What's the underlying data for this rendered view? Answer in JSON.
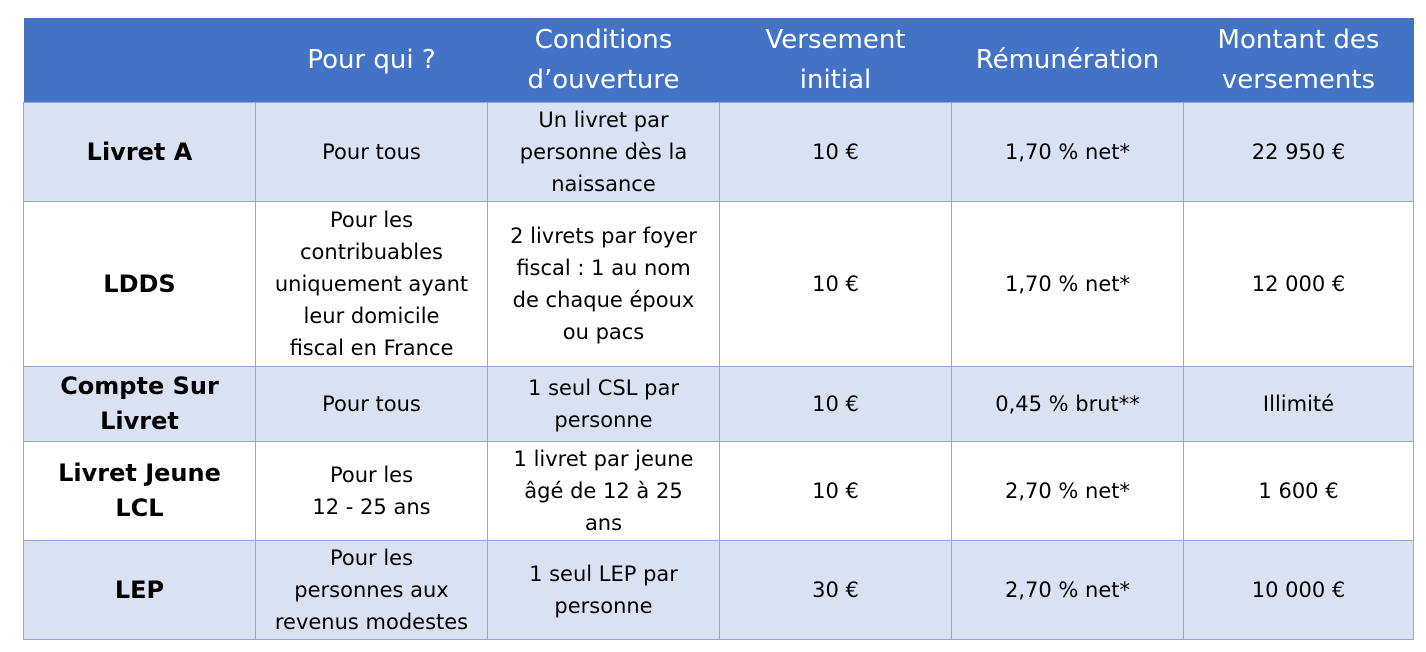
{
  "table": {
    "headers": [
      "",
      "Pour qui ?",
      "Conditions\nd’ouverture",
      "Versement\ninitial",
      "Rémunération",
      "Montant des\nversements"
    ],
    "rows": [
      {
        "name": "Livret A",
        "pour_qui": "Pour tous",
        "conditions": "Un livret par\npersonne dès la\nnaissance",
        "versement": "10 €",
        "remuneration": "1,70 % net*",
        "montant": "22 950 €"
      },
      {
        "name": "LDDS",
        "pour_qui": "Pour les\ncontribuables\nuniquement ayant\nleur domicile\nfiscal en France",
        "conditions": "2 livrets par foyer\nfiscal : 1 au nom\nde chaque époux\nou pacs",
        "versement": "10 €",
        "remuneration": "1,70 % net*",
        "montant": "12 000 €"
      },
      {
        "name": "Compte Sur\nLivret",
        "pour_qui": "Pour tous",
        "conditions": "1 seul CSL par\npersonne",
        "versement": "10 €",
        "remuneration": "0,45 % brut**",
        "montant": "Illimité"
      },
      {
        "name": "Livret Jeune\nLCL",
        "pour_qui": "Pour les\n12 - 25 ans",
        "conditions": "1 livret par jeune\nâgé de 12 à 25\nans",
        "versement": "10 €",
        "remuneration": "2,70 % net*",
        "montant": "1 600 €"
      },
      {
        "name": "LEP",
        "pour_qui": "Pour les\npersonnes aux\nrevenus modestes",
        "conditions": "1 seul LEP par\npersonne",
        "versement": "30 €",
        "remuneration": "2,70 % net*",
        "montant": "10 000 €"
      }
    ]
  },
  "colors": {
    "header_bg": "#4472c4",
    "header_text": "#ffffff",
    "row_shade": "#d9e2f3",
    "row_plain": "#ffffff",
    "border": "#8eaadb"
  }
}
